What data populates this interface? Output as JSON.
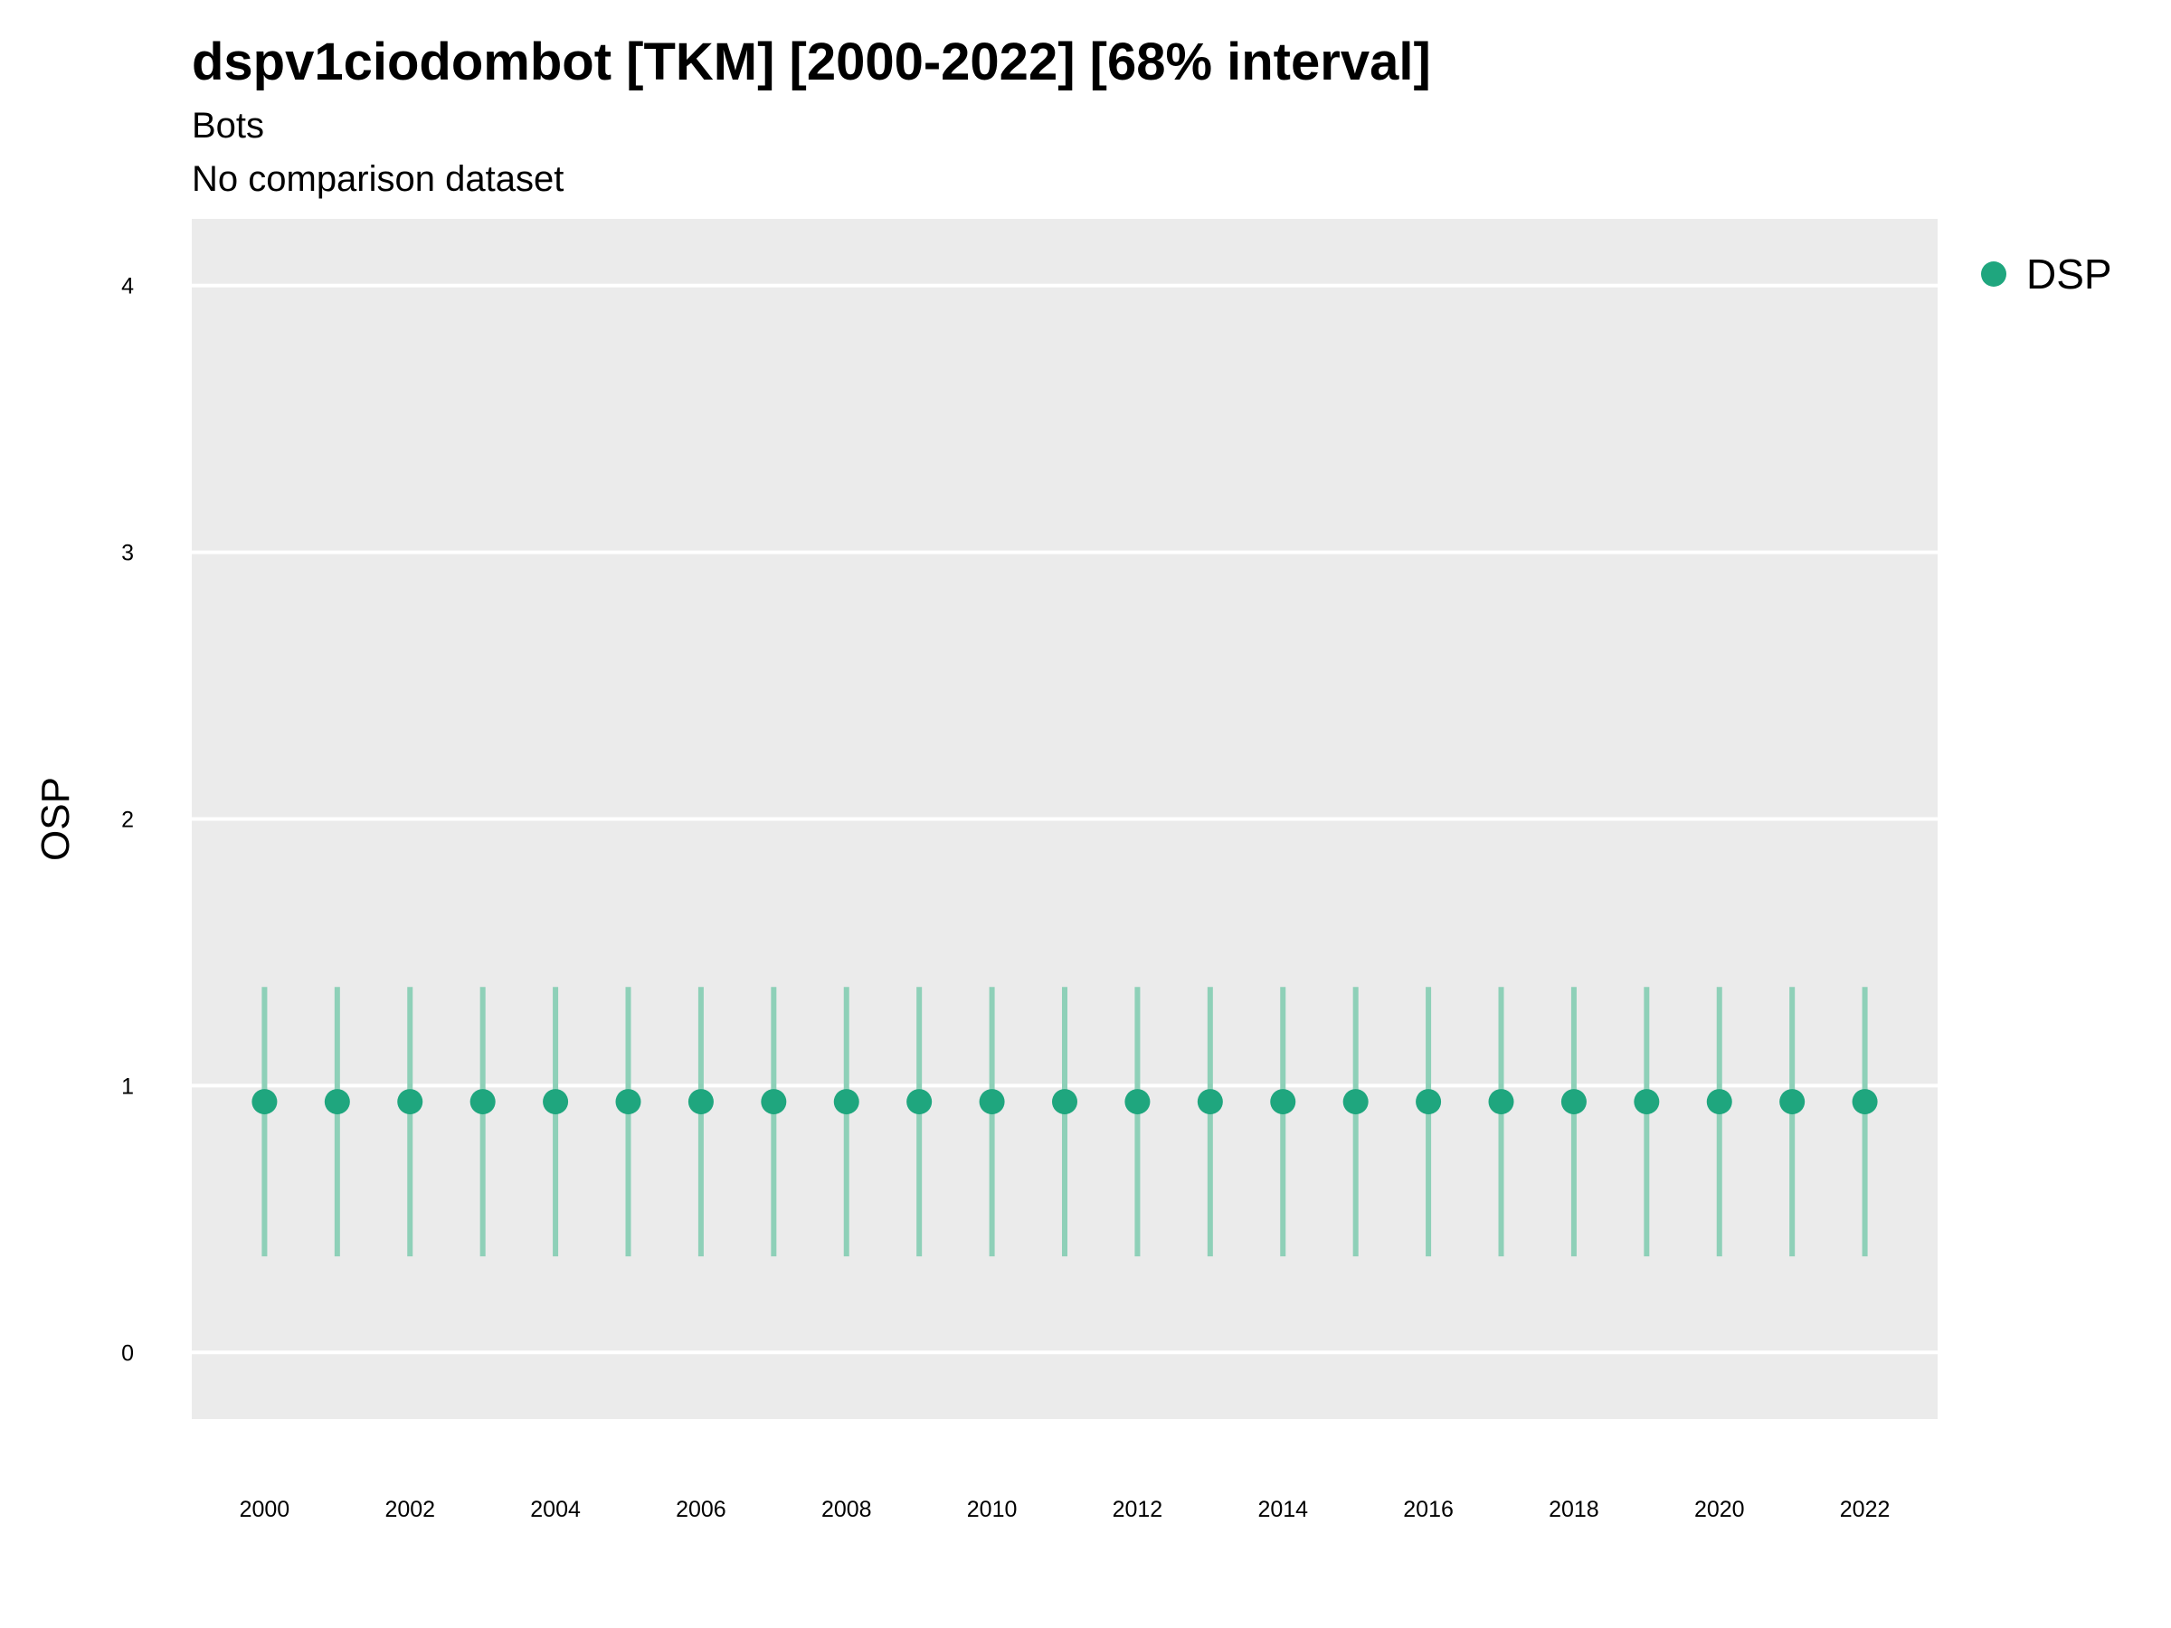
{
  "chart_data": {
    "type": "scatter",
    "title": "dspv1ciodombot [TKM] [2000-2022] [68% interval]",
    "subtitle": [
      "Bots",
      "No comparison dataset"
    ],
    "xlabel": "",
    "ylabel": "OSP",
    "xlim": [
      1999,
      2023
    ],
    "ylim": [
      -0.25,
      4.25
    ],
    "x_ticks": [
      2000,
      2002,
      2004,
      2006,
      2008,
      2010,
      2012,
      2014,
      2016,
      2018,
      2020,
      2022
    ],
    "y_ticks": [
      0,
      1,
      2,
      3,
      4
    ],
    "grid": true,
    "legend_position": "right",
    "series": [
      {
        "name": "DSP",
        "color": "#1FA67E",
        "interval_color": "#8ED0B8",
        "points": [
          {
            "x": 2000,
            "y": 0.94,
            "lower": 0.36,
            "upper": 1.37
          },
          {
            "x": 2001,
            "y": 0.94,
            "lower": 0.36,
            "upper": 1.37
          },
          {
            "x": 2002,
            "y": 0.94,
            "lower": 0.36,
            "upper": 1.37
          },
          {
            "x": 2003,
            "y": 0.94,
            "lower": 0.36,
            "upper": 1.37
          },
          {
            "x": 2004,
            "y": 0.94,
            "lower": 0.36,
            "upper": 1.37
          },
          {
            "x": 2005,
            "y": 0.94,
            "lower": 0.36,
            "upper": 1.37
          },
          {
            "x": 2006,
            "y": 0.94,
            "lower": 0.36,
            "upper": 1.37
          },
          {
            "x": 2007,
            "y": 0.94,
            "lower": 0.36,
            "upper": 1.37
          },
          {
            "x": 2008,
            "y": 0.94,
            "lower": 0.36,
            "upper": 1.37
          },
          {
            "x": 2009,
            "y": 0.94,
            "lower": 0.36,
            "upper": 1.37
          },
          {
            "x": 2010,
            "y": 0.94,
            "lower": 0.36,
            "upper": 1.37
          },
          {
            "x": 2011,
            "y": 0.94,
            "lower": 0.36,
            "upper": 1.37
          },
          {
            "x": 2012,
            "y": 0.94,
            "lower": 0.36,
            "upper": 1.37
          },
          {
            "x": 2013,
            "y": 0.94,
            "lower": 0.36,
            "upper": 1.37
          },
          {
            "x": 2014,
            "y": 0.94,
            "lower": 0.36,
            "upper": 1.37
          },
          {
            "x": 2015,
            "y": 0.94,
            "lower": 0.36,
            "upper": 1.37
          },
          {
            "x": 2016,
            "y": 0.94,
            "lower": 0.36,
            "upper": 1.37
          },
          {
            "x": 2017,
            "y": 0.94,
            "lower": 0.36,
            "upper": 1.37
          },
          {
            "x": 2018,
            "y": 0.94,
            "lower": 0.36,
            "upper": 1.37
          },
          {
            "x": 2019,
            "y": 0.94,
            "lower": 0.36,
            "upper": 1.37
          },
          {
            "x": 2020,
            "y": 0.94,
            "lower": 0.36,
            "upper": 1.37
          },
          {
            "x": 2021,
            "y": 0.94,
            "lower": 0.36,
            "upper": 1.37
          },
          {
            "x": 2022,
            "y": 0.94,
            "lower": 0.36,
            "upper": 1.37
          }
        ]
      }
    ]
  }
}
